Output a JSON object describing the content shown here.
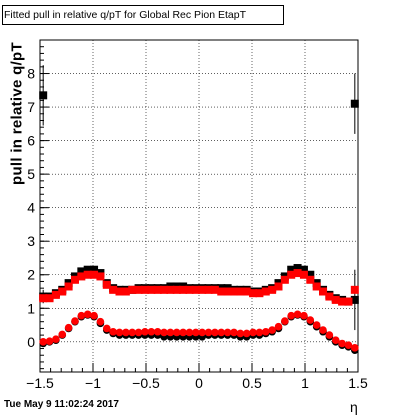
{
  "title": "Fitted pull in relative q/pT for Global Rec Pion EtapT",
  "timestamp": "Tue May  9 11:02:24 2017",
  "chart_data": {
    "type": "scatter",
    "title": "Fitted pull in relative q/pT for Global Rec Pion EtapT",
    "xlabel": "η",
    "ylabel": "pull in relative q/pT",
    "xlim": [
      -1.5,
      1.5
    ],
    "ylim": [
      -0.9,
      9.0
    ],
    "xticks": [
      -1.5,
      -1,
      -0.5,
      0,
      0.5,
      1,
      1.5
    ],
    "xtick_labels": [
      "−1.5",
      "−1",
      "−0.5",
      "0",
      "0.5",
      "1",
      "1.5"
    ],
    "yticks": [
      0,
      1,
      2,
      3,
      4,
      5,
      6,
      7,
      8
    ],
    "ytick_labels": [
      "0",
      "1",
      "2",
      "3",
      "4",
      "5",
      "6",
      "7",
      "8"
    ],
    "grid": true,
    "series": [
      {
        "color": "#000000",
        "marker": "square",
        "x": [
          -1.47,
          -1.41,
          -1.35,
          -1.29,
          -1.23,
          -1.17,
          -1.11,
          -1.05,
          -0.99,
          -0.93,
          -0.87,
          -0.81,
          -0.75,
          -0.69,
          -0.63,
          -0.57,
          -0.51,
          -0.45,
          -0.39,
          -0.33,
          -0.27,
          -0.21,
          -0.15,
          -0.09,
          -0.03,
          0.03,
          0.09,
          0.15,
          0.21,
          0.27,
          0.33,
          0.39,
          0.45,
          0.51,
          0.57,
          0.63,
          0.69,
          0.75,
          0.81,
          0.87,
          0.93,
          0.99,
          1.05,
          1.11,
          1.17,
          1.23,
          1.29,
          1.35,
          1.41,
          1.47
        ],
        "values": [
          1.35,
          1.35,
          1.45,
          1.55,
          1.75,
          1.95,
          2.1,
          2.15,
          2.15,
          2.05,
          1.75,
          1.6,
          1.55,
          1.55,
          1.55,
          1.6,
          1.6,
          1.6,
          1.6,
          1.6,
          1.65,
          1.65,
          1.65,
          1.6,
          1.6,
          1.6,
          1.6,
          1.6,
          1.6,
          1.6,
          1.55,
          1.55,
          1.55,
          1.5,
          1.5,
          1.55,
          1.6,
          1.75,
          1.95,
          2.15,
          2.2,
          2.15,
          2.0,
          1.75,
          1.55,
          1.4,
          1.3,
          1.25,
          1.2,
          1.25
        ],
        "errors": [
          0.2,
          0.1,
          0.08,
          0.06,
          0.05,
          0.04,
          0.04,
          0.04,
          0.04,
          0.04,
          0.04,
          0.04,
          0.04,
          0.04,
          0.04,
          0.04,
          0.04,
          0.04,
          0.04,
          0.04,
          0.04,
          0.04,
          0.04,
          0.04,
          0.04,
          0.04,
          0.04,
          0.04,
          0.04,
          0.04,
          0.04,
          0.04,
          0.04,
          0.04,
          0.04,
          0.04,
          0.04,
          0.04,
          0.04,
          0.04,
          0.04,
          0.04,
          0.04,
          0.05,
          0.05,
          0.06,
          0.07,
          0.08,
          0.1,
          0.9
        ]
      },
      {
        "color": "#000000",
        "marker": "circle",
        "x": [
          -1.47,
          -1.41,
          -1.35,
          -1.29,
          -1.23,
          -1.17,
          -1.11,
          -1.05,
          -0.99,
          -0.93,
          -0.87,
          -0.81,
          -0.75,
          -0.69,
          -0.63,
          -0.57,
          -0.51,
          -0.45,
          -0.39,
          -0.33,
          -0.27,
          -0.21,
          -0.15,
          -0.09,
          -0.03,
          0.03,
          0.09,
          0.15,
          0.21,
          0.27,
          0.33,
          0.39,
          0.45,
          0.51,
          0.57,
          0.63,
          0.69,
          0.75,
          0.81,
          0.87,
          0.93,
          0.99,
          1.05,
          1.11,
          1.17,
          1.23,
          1.29,
          1.35,
          1.41,
          1.47
        ],
        "values": [
          -0.05,
          0.0,
          0.05,
          0.2,
          0.4,
          0.6,
          0.75,
          0.8,
          0.75,
          0.55,
          0.35,
          0.25,
          0.2,
          0.2,
          0.2,
          0.2,
          0.2,
          0.2,
          0.2,
          0.15,
          0.15,
          0.15,
          0.15,
          0.15,
          0.15,
          0.15,
          0.2,
          0.2,
          0.2,
          0.2,
          0.2,
          0.15,
          0.15,
          0.2,
          0.2,
          0.25,
          0.3,
          0.4,
          0.6,
          0.75,
          0.8,
          0.75,
          0.6,
          0.45,
          0.3,
          0.15,
          0.0,
          -0.1,
          -0.15,
          -0.25
        ],
        "errors": [
          0.04,
          0.03,
          0.03,
          0.03,
          0.03,
          0.03,
          0.03,
          0.03,
          0.03,
          0.03,
          0.03,
          0.03,
          0.03,
          0.03,
          0.03,
          0.03,
          0.03,
          0.03,
          0.03,
          0.03,
          0.03,
          0.03,
          0.03,
          0.03,
          0.03,
          0.03,
          0.03,
          0.03,
          0.03,
          0.03,
          0.03,
          0.03,
          0.03,
          0.03,
          0.03,
          0.03,
          0.03,
          0.03,
          0.03,
          0.03,
          0.03,
          0.03,
          0.03,
          0.03,
          0.03,
          0.03,
          0.03,
          0.03,
          0.04,
          0.05
        ]
      },
      {
        "color": "#ff0000",
        "marker": "square",
        "x": [
          -1.47,
          -1.41,
          -1.35,
          -1.29,
          -1.23,
          -1.17,
          -1.11,
          -1.05,
          -0.99,
          -0.93,
          -0.87,
          -0.81,
          -0.75,
          -0.69,
          -0.63,
          -0.57,
          -0.51,
          -0.45,
          -0.39,
          -0.33,
          -0.27,
          -0.21,
          -0.15,
          -0.09,
          -0.03,
          0.03,
          0.09,
          0.15,
          0.21,
          0.27,
          0.33,
          0.39,
          0.45,
          0.51,
          0.57,
          0.63,
          0.69,
          0.75,
          0.81,
          0.87,
          0.93,
          0.99,
          1.05,
          1.11,
          1.17,
          1.23,
          1.29,
          1.35,
          1.41,
          1.47
        ],
        "values": [
          1.3,
          1.3,
          1.4,
          1.5,
          1.65,
          1.85,
          1.95,
          2.0,
          2.0,
          1.95,
          1.7,
          1.55,
          1.5,
          1.5,
          1.55,
          1.55,
          1.55,
          1.55,
          1.55,
          1.55,
          1.55,
          1.55,
          1.55,
          1.55,
          1.55,
          1.55,
          1.55,
          1.55,
          1.5,
          1.5,
          1.5,
          1.5,
          1.5,
          1.45,
          1.45,
          1.5,
          1.55,
          1.65,
          1.85,
          2.0,
          2.05,
          2.0,
          1.85,
          1.65,
          1.5,
          1.35,
          1.25,
          1.2,
          1.2,
          1.55
        ],
        "errors": [
          0.05,
          0.04,
          0.04,
          0.04,
          0.04,
          0.04,
          0.04,
          0.04,
          0.04,
          0.04,
          0.04,
          0.04,
          0.04,
          0.04,
          0.04,
          0.04,
          0.04,
          0.04,
          0.04,
          0.04,
          0.04,
          0.04,
          0.04,
          0.04,
          0.04,
          0.04,
          0.04,
          0.04,
          0.04,
          0.04,
          0.04,
          0.04,
          0.04,
          0.04,
          0.04,
          0.04,
          0.04,
          0.04,
          0.04,
          0.04,
          0.04,
          0.04,
          0.04,
          0.04,
          0.04,
          0.04,
          0.04,
          0.04,
          0.05,
          0.08
        ]
      },
      {
        "color": "#ff0000",
        "marker": "circle",
        "x": [
          -1.47,
          -1.41,
          -1.35,
          -1.29,
          -1.23,
          -1.17,
          -1.11,
          -1.05,
          -0.99,
          -0.93,
          -0.87,
          -0.81,
          -0.75,
          -0.69,
          -0.63,
          -0.57,
          -0.51,
          -0.45,
          -0.39,
          -0.33,
          -0.27,
          -0.21,
          -0.15,
          -0.09,
          -0.03,
          0.03,
          0.09,
          0.15,
          0.21,
          0.27,
          0.33,
          0.39,
          0.45,
          0.51,
          0.57,
          0.63,
          0.69,
          0.75,
          0.81,
          0.87,
          0.93,
          0.99,
          1.05,
          1.11,
          1.17,
          1.23,
          1.29,
          1.35,
          1.41,
          1.47
        ],
        "values": [
          0.0,
          0.02,
          0.08,
          0.22,
          0.42,
          0.62,
          0.78,
          0.82,
          0.78,
          0.6,
          0.4,
          0.3,
          0.28,
          0.28,
          0.28,
          0.28,
          0.3,
          0.3,
          0.3,
          0.28,
          0.28,
          0.28,
          0.28,
          0.28,
          0.28,
          0.28,
          0.28,
          0.28,
          0.28,
          0.28,
          0.28,
          0.25,
          0.25,
          0.28,
          0.28,
          0.3,
          0.35,
          0.45,
          0.62,
          0.78,
          0.82,
          0.78,
          0.65,
          0.5,
          0.35,
          0.2,
          0.05,
          -0.05,
          -0.1,
          -0.18
        ],
        "errors": [
          0.03,
          0.03,
          0.03,
          0.03,
          0.03,
          0.03,
          0.03,
          0.03,
          0.03,
          0.03,
          0.03,
          0.03,
          0.03,
          0.03,
          0.03,
          0.03,
          0.03,
          0.03,
          0.03,
          0.03,
          0.03,
          0.03,
          0.03,
          0.03,
          0.03,
          0.03,
          0.03,
          0.03,
          0.03,
          0.03,
          0.03,
          0.03,
          0.03,
          0.03,
          0.03,
          0.03,
          0.03,
          0.03,
          0.03,
          0.03,
          0.03,
          0.03,
          0.03,
          0.03,
          0.03,
          0.03,
          0.03,
          0.03,
          0.03,
          0.04
        ]
      },
      {
        "color": "#000000",
        "marker": "square",
        "x": [
          -1.47,
          1.47
        ],
        "values": [
          7.35,
          7.1
        ],
        "errors": [
          0.9,
          0.9
        ]
      }
    ]
  }
}
